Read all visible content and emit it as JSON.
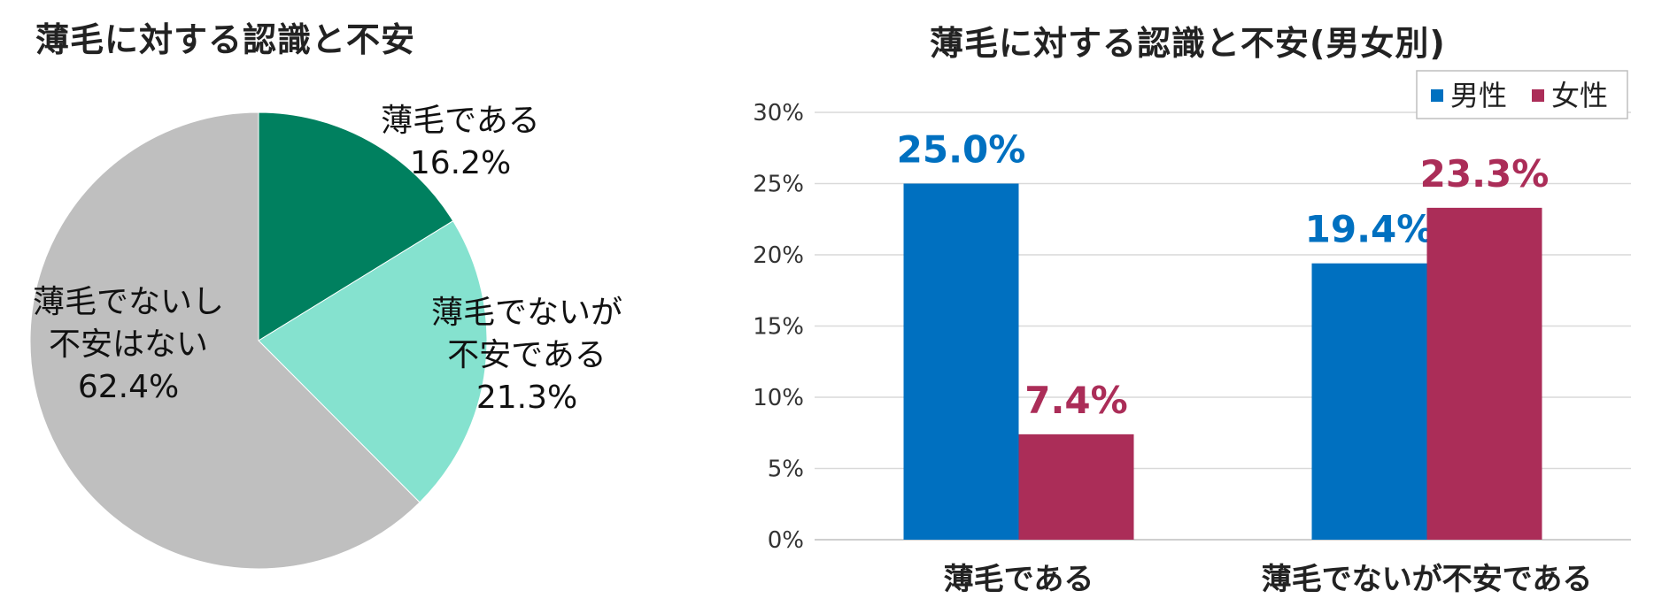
{
  "pie": {
    "title": "薄毛に対する認識と不安"
  },
  "bar": {
    "title": "薄毛に対する認識と不安(男女別)"
  },
  "colors": {
    "pie_dark_green": "#00805f",
    "pie_light_green": "#85e2cf",
    "pie_gray": "#bfbfbf",
    "male": "#0070c0",
    "female": "#ab2d58",
    "grid": "#d9d9d9"
  },
  "chart_data": [
    {
      "type": "pie",
      "title": "薄毛に対する認識と不安",
      "slices": [
        {
          "label_lines": [
            "薄毛である"
          ],
          "value_label": "16.2%",
          "value": 16.2,
          "color": "#00805f"
        },
        {
          "label_lines": [
            "薄毛でないが",
            "不安である"
          ],
          "value_label": "21.3%",
          "value": 21.3,
          "color": "#85e2cf"
        },
        {
          "label_lines": [
            "薄毛でないし",
            "不安はない"
          ],
          "value_label": "62.4%",
          "value": 62.4,
          "color": "#bfbfbf"
        }
      ]
    },
    {
      "type": "bar",
      "title": "薄毛に対する認識と不安(男女別)",
      "categories": [
        "薄毛である",
        "薄毛でないが不安である"
      ],
      "series": [
        {
          "name": "男性",
          "values": [
            25.0,
            19.4
          ],
          "labels": [
            "25.0%",
            "19.4%"
          ],
          "color": "#0070c0"
        },
        {
          "name": "女性",
          "values": [
            7.4,
            23.3
          ],
          "labels": [
            "7.4%",
            "23.3%"
          ],
          "color": "#ab2d58"
        }
      ],
      "ylim": [
        0,
        30
      ],
      "yticks": [
        "0%",
        "5%",
        "10%",
        "15%",
        "20%",
        "25%",
        "30%"
      ],
      "ytick_values": [
        0,
        5,
        10,
        15,
        20,
        25,
        30
      ],
      "grid": true,
      "legend_position": "top-right"
    }
  ]
}
